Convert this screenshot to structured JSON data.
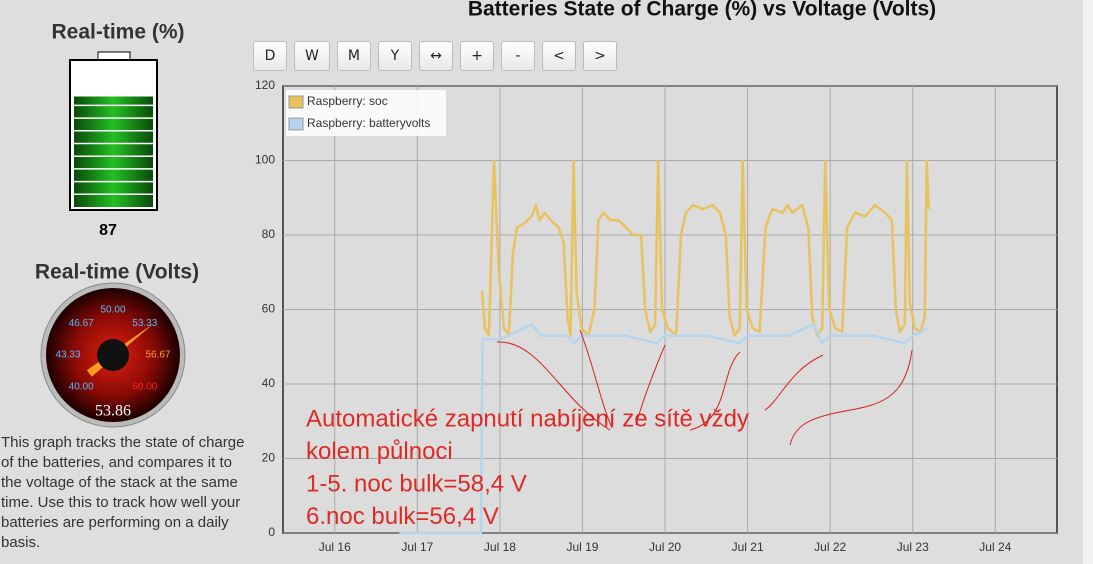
{
  "left_panel": {
    "soc_title": "Real-time (%)",
    "soc_value": 87,
    "volts_title": "Real-time (Volts)",
    "gauge": {
      "min": 40,
      "max": 60,
      "ticks": [
        {
          "value": 40,
          "label": "40.00"
        },
        {
          "value": 43.33,
          "label": "43.33"
        },
        {
          "value": 46.67,
          "label": "46.67"
        },
        {
          "value": 50,
          "label": "50.00"
        },
        {
          "value": 53.33,
          "label": "53.33"
        },
        {
          "value": 56.67,
          "label": "56.67"
        },
        {
          "value": 60,
          "label": "60.00"
        }
      ],
      "value": 53.86
    },
    "description": "This graph tracks the state of charge of the batteries, and compares it to the voltage of the stack at the same time. Use this to track how well your batteries are performing on a daily basis."
  },
  "toolbar": {
    "buttons": [
      "D",
      "W",
      "M",
      "Y",
      "↔",
      "+",
      "-",
      "<",
      ">"
    ]
  },
  "chart_data": {
    "type": "line",
    "title": "Batteries State of Charge (%) vs Voltage (Volts)",
    "xlim": [
      15.373,
      24.747
    ],
    "xticks": [
      {
        "value": 16,
        "label": "Jul 16"
      },
      {
        "value": 17,
        "label": "Jul 17"
      },
      {
        "value": 18,
        "label": "Jul 18"
      },
      {
        "value": 19,
        "label": "Jul 19"
      },
      {
        "value": 20,
        "label": "Jul 20"
      },
      {
        "value": 21,
        "label": "Jul 21"
      },
      {
        "value": 22,
        "label": "Jul 22"
      },
      {
        "value": 23,
        "label": "Jul 23"
      },
      {
        "value": 24,
        "label": "Jul 24"
      }
    ],
    "ylim": [
      0,
      120
    ],
    "yticks": [
      0,
      20,
      40,
      60,
      80,
      100,
      120
    ],
    "grid": true,
    "legend": "top-left",
    "series": [
      {
        "name": "Raspberry: soc",
        "color": "#e8c25c",
        "x": [
          17.783,
          17.819,
          17.867,
          17.928,
          17.988,
          18.048,
          18.108,
          18.157,
          18.205,
          18.289,
          18.386,
          18.434,
          18.482,
          18.542,
          18.614,
          18.711,
          18.771,
          18.819,
          18.855,
          18.892,
          18.928,
          18.988,
          19.072,
          19.145,
          19.193,
          19.253,
          19.337,
          19.434,
          19.53,
          19.614,
          19.711,
          19.759,
          19.819,
          19.88,
          19.916,
          19.964,
          20.036,
          20.133,
          20.193,
          20.253,
          20.337,
          20.458,
          20.578,
          20.663,
          20.735,
          20.783,
          20.843,
          20.904,
          20.94,
          20.988,
          21.06,
          21.145,
          21.217,
          21.301,
          21.422,
          21.482,
          21.542,
          21.663,
          21.735,
          21.783,
          21.843,
          21.904,
          21.94,
          21.988,
          22.06,
          22.145,
          22.205,
          22.301,
          22.422,
          22.542,
          22.663,
          22.747,
          22.795,
          22.843,
          22.904,
          22.928,
          22.964,
          23.024,
          23.096,
          23.145,
          23.169,
          23.193
        ],
        "values": [
          65,
          55,
          53,
          100,
          70,
          55,
          53,
          75,
          82,
          83,
          85,
          88,
          84,
          86,
          84,
          82,
          78,
          58,
          53,
          100,
          65,
          55,
          53,
          60,
          84,
          86,
          84,
          84,
          82,
          80,
          80,
          60,
          54,
          56,
          100,
          60,
          55,
          53,
          80,
          86,
          88,
          87,
          88,
          86,
          80,
          58,
          53,
          55,
          100,
          60,
          55,
          54,
          82,
          87,
          86,
          88,
          86,
          88,
          82,
          58,
          53,
          55,
          100,
          60,
          55,
          54,
          82,
          86,
          85,
          88,
          86,
          84,
          60,
          54,
          56,
          100,
          62,
          55,
          54,
          58,
          100,
          87
        ]
      },
      {
        "name": "Raspberry: batteryvolts",
        "color": "#b5d5ef",
        "x": [
          16.783,
          17.77,
          17.79,
          18.0,
          18.1,
          18.386,
          18.5,
          18.8,
          18.9,
          19.0,
          19.5,
          19.9,
          20.0,
          20.5,
          20.9,
          21.0,
          21.5,
          21.8,
          21.9,
          22.0,
          22.5,
          22.9,
          23.0,
          23.193
        ],
        "values": [
          0,
          0,
          52,
          52,
          53,
          56,
          53,
          53,
          51,
          53,
          53,
          51,
          53,
          53,
          51,
          53,
          53,
          56,
          51,
          53,
          53,
          51,
          53,
          55
        ]
      }
    ],
    "annotation": [
      "Automatické zapnutí nabíjení ze sítě vždy",
      "kolem půlnoci",
      "1-5. noc bulk=58,4 V",
      "6.noc bulk=56,4 V"
    ]
  }
}
